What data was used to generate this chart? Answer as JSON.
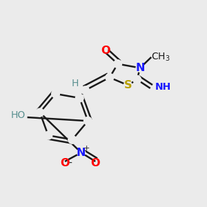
{
  "background_color": "#ebebeb",
  "bond_color": "#1a1a1a",
  "bond_width": 1.8,
  "atoms": {
    "S": {
      "label": "S",
      "color": "#b8a000"
    },
    "N3": {
      "label": "N",
      "color": "#1a1aff"
    },
    "O4": {
      "label": "O",
      "color": "#ff0000"
    },
    "CH3": {
      "label": "CH₃",
      "color": "#1a1a1a"
    },
    "NH": {
      "label": "NH",
      "color": "#1a1aff"
    },
    "H": {
      "label": "H",
      "color": "#5a9090"
    },
    "HO": {
      "label": "HO",
      "color": "#5a9090"
    },
    "N+": {
      "label": "N",
      "color": "#1a1aff"
    },
    "O-": {
      "label": "O",
      "color": "#ff0000"
    },
    "O2": {
      "label": "O",
      "color": "#ff0000"
    }
  }
}
